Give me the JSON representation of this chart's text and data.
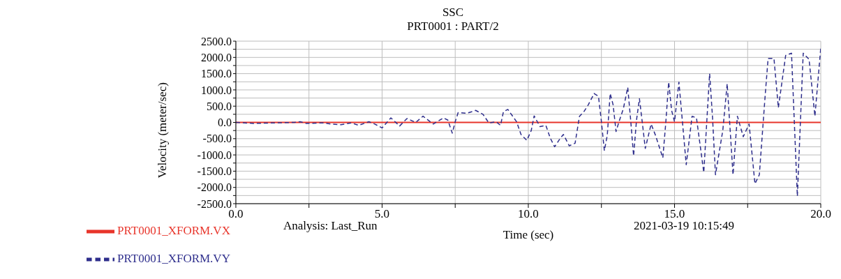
{
  "chart_data": {
    "type": "line",
    "title": "SSC",
    "subtitle": "PRT0001 : PART/2",
    "xlabel": "Time (sec)",
    "ylabel": "Velocity (meter/sec)",
    "annotations": [
      "Analysis: Last_Run",
      "2021-03-19 10:15:49"
    ],
    "xlim": [
      0,
      20
    ],
    "xticks": [
      {
        "value": 0,
        "label": "0.0"
      },
      {
        "value": 2.5,
        "label": null
      },
      {
        "value": 5,
        "label": "5.0"
      },
      {
        "value": 7.5,
        "label": null
      },
      {
        "value": 10,
        "label": "10.0"
      },
      {
        "value": 12.5,
        "label": null
      },
      {
        "value": 15,
        "label": "15.0"
      },
      {
        "value": 17.5,
        "label": null
      },
      {
        "value": 20,
        "label": "20.0"
      }
    ],
    "ylim": [
      -2500,
      2500
    ],
    "yticks": [
      {
        "value": -2500,
        "label": "-2500.0"
      },
      {
        "value": -2250,
        "label": null
      },
      {
        "value": -2000,
        "label": "-2000.0"
      },
      {
        "value": -1750,
        "label": null
      },
      {
        "value": -1500,
        "label": "-1500.0"
      },
      {
        "value": -1250,
        "label": null
      },
      {
        "value": -1000,
        "label": "-1000.0"
      },
      {
        "value": -750,
        "label": null
      },
      {
        "value": -500,
        "label": "-500.0"
      },
      {
        "value": -250,
        "label": null
      },
      {
        "value": 0,
        "label": "0.0"
      },
      {
        "value": 250,
        "label": null
      },
      {
        "value": 500,
        "label": "500.0"
      },
      {
        "value": 750,
        "label": null
      },
      {
        "value": 1000,
        "label": "1000.0"
      },
      {
        "value": 1250,
        "label": null
      },
      {
        "value": 1500,
        "label": "1500.0"
      },
      {
        "value": 1750,
        "label": null
      },
      {
        "value": 2000,
        "label": "2000.0"
      },
      {
        "value": 2250,
        "label": null
      },
      {
        "value": 2500,
        "label": "2500.0"
      }
    ],
    "grid": true,
    "legend": "bottom left",
    "marker": "none",
    "series": [
      {
        "name": "PRT0001_XFORM.VX",
        "color": "#e8352b",
        "line_style": "solid",
        "x": [
          0,
          20
        ],
        "values": [
          0,
          0
        ]
      },
      {
        "name": "PRT0001_XFORM.VY",
        "color": "#2e2e8c",
        "line_style": "dashed",
        "x": [
          0,
          0.6,
          2.0,
          2.2,
          2.4,
          3.0,
          3.25,
          3.6,
          3.95,
          4.2,
          4.55,
          4.75,
          5.0,
          5.3,
          5.6,
          5.85,
          6.15,
          6.4,
          6.75,
          7.1,
          7.25,
          7.4,
          7.5,
          7.6,
          7.9,
          8.2,
          8.45,
          8.65,
          8.9,
          9.05,
          9.15,
          9.3,
          9.6,
          9.75,
          9.95,
          10.1,
          10.2,
          10.4,
          10.6,
          10.75,
          10.9,
          11.1,
          11.2,
          11.4,
          11.6,
          11.75,
          11.9,
          12.05,
          12.25,
          12.4,
          12.5,
          12.6,
          12.7,
          12.8,
          12.9,
          13.0,
          13.1,
          13.25,
          13.4,
          13.5,
          13.6,
          13.7,
          13.8,
          13.9,
          14.0,
          14.2,
          14.35,
          14.6,
          14.7,
          14.8,
          14.9,
          15.0,
          15.15,
          15.4,
          15.6,
          15.75,
          16.0,
          16.2,
          16.3,
          16.4,
          16.65,
          16.8,
          17.0,
          17.15,
          17.35,
          17.55,
          17.75,
          17.9,
          18.1,
          18.2,
          18.4,
          18.55,
          18.8,
          19.0,
          19.2,
          19.4,
          19.6,
          19.8,
          20.0
        ],
        "values": [
          0,
          -30,
          0,
          20,
          -30,
          -15,
          -50,
          -70,
          -15,
          -90,
          20,
          -50,
          -170,
          140,
          -110,
          120,
          0,
          190,
          -50,
          140,
          70,
          -330,
          20,
          300,
          280,
          370,
          250,
          -15,
          20,
          -90,
          330,
          400,
          20,
          -370,
          -550,
          -250,
          200,
          -130,
          -90,
          -480,
          -750,
          -480,
          -370,
          -720,
          -640,
          190,
          330,
          540,
          890,
          800,
          20,
          -870,
          -400,
          890,
          540,
          -280,
          20,
          420,
          1080,
          70,
          -1030,
          70,
          730,
          -20,
          -800,
          -50,
          -400,
          -1090,
          -20,
          1240,
          370,
          20,
          1240,
          -1300,
          190,
          140,
          -1540,
          1500,
          140,
          -1610,
          -250,
          1190,
          -1610,
          190,
          -440,
          -50,
          -1890,
          -1610,
          840,
          1970,
          1970,
          450,
          2060,
          2130,
          -2270,
          2130,
          1940,
          190,
          2290
        ]
      }
    ]
  }
}
